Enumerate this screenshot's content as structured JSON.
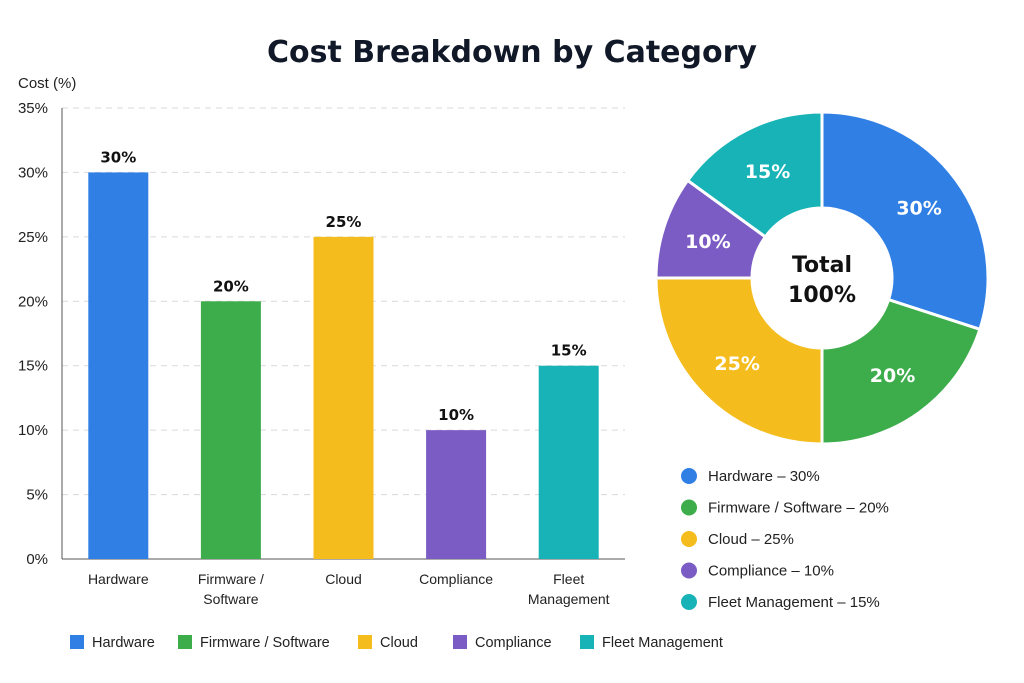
{
  "colors": {
    "Hardware": "#2f7fe4",
    "Firmware / Software": "#3cad4a",
    "Cloud": "#f4bd1d",
    "Compliance": "#7b5cc4",
    "Fleet Management": "#18b3b7"
  },
  "chart_data": [
    {
      "type": "bar",
      "title": "Cost Breakdown by Category",
      "xlabel": "",
      "ylabel": "Cost (%)",
      "ylim": [
        0,
        35
      ],
      "yticks": [
        0,
        5,
        10,
        15,
        20,
        25,
        30,
        35
      ],
      "ytick_labels": [
        "0%",
        "5%",
        "10%",
        "15%",
        "20%",
        "25%",
        "30%",
        "35%"
      ],
      "categories": [
        "Hardware",
        "Firmware / Software",
        "Cloud",
        "Compliance",
        "Fleet Management"
      ],
      "category_labels": [
        [
          "Hardware"
        ],
        [
          "Firmware /",
          "Software"
        ],
        [
          "Cloud"
        ],
        [
          "Compliance"
        ],
        [
          "Fleet",
          "Management"
        ]
      ],
      "values": [
        30,
        20,
        25,
        10,
        15
      ],
      "data_labels": [
        "30%",
        "20%",
        "25%",
        "10%",
        "15%"
      ],
      "grid": true,
      "legend": {
        "position": "bottom",
        "entries": [
          "Hardware",
          "Firmware / Software",
          "Cloud",
          "Compliance",
          "Fleet Management"
        ]
      }
    },
    {
      "type": "pie",
      "style": "donut",
      "labels": [
        "Hardware",
        "Firmware / Software",
        "Cloud",
        "Compliance",
        "Fleet Management"
      ],
      "values": [
        30,
        20,
        25,
        10,
        15
      ],
      "slice_labels": [
        "30%",
        "20%",
        "25%",
        "10%",
        "15%"
      ],
      "center_text": [
        "Total",
        "100%"
      ],
      "legend": {
        "position": "right-bottom",
        "entries": [
          "Hardware – 30%",
          "Firmware / Software – 20%",
          "Cloud – 25%",
          "Compliance – 10%",
          "Fleet Management – 15%"
        ]
      }
    }
  ]
}
